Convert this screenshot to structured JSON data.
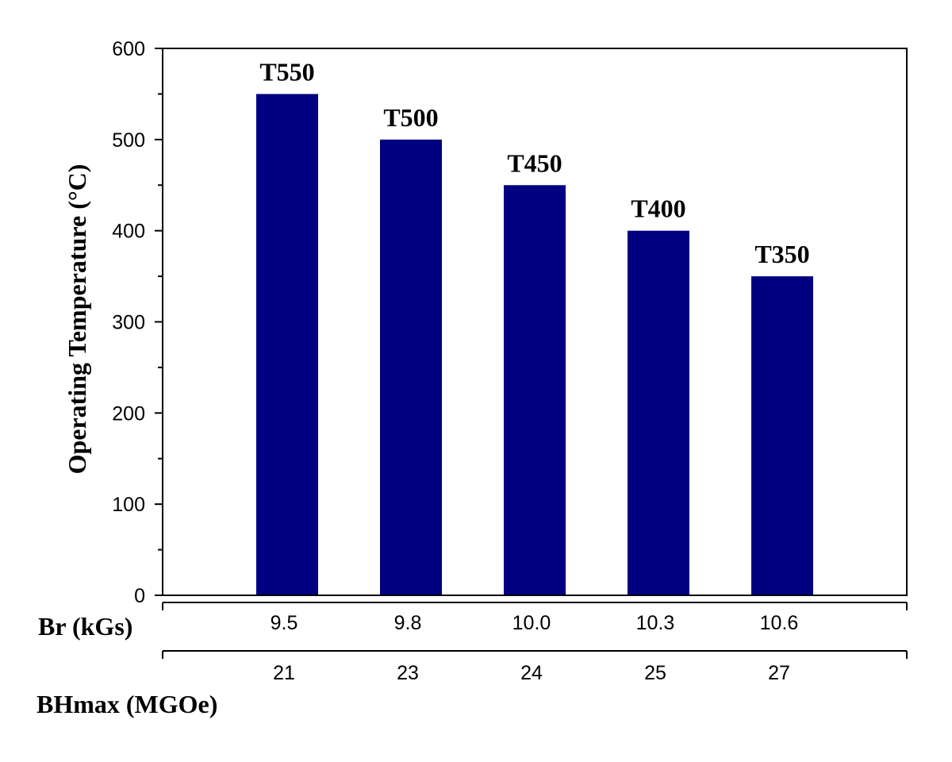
{
  "chart_data": {
    "type": "bar",
    "categories": [
      "T550",
      "T500",
      "T450",
      "T400",
      "T350"
    ],
    "values": [
      550,
      500,
      450,
      400,
      350
    ],
    "bar_labels": [
      "T550",
      "T500",
      "T450",
      "T400",
      "T350"
    ],
    "ylabel": "Operating Temperature (°C)",
    "ylim": [
      0,
      600
    ],
    "yticks": [
      "0",
      "100",
      "200",
      "300",
      "400",
      "500",
      "600"
    ],
    "secondary_axes": [
      {
        "title": "Br (kGs)",
        "ticks": [
          "9.5",
          "9.8",
          "10.0",
          "10.3",
          "10.6"
        ]
      },
      {
        "title": "BHmax (MGOe)",
        "ticks": [
          "21",
          "23",
          "24",
          "25",
          "27"
        ]
      }
    ],
    "bar_color": "#000080",
    "grid": false,
    "legend": false
  }
}
